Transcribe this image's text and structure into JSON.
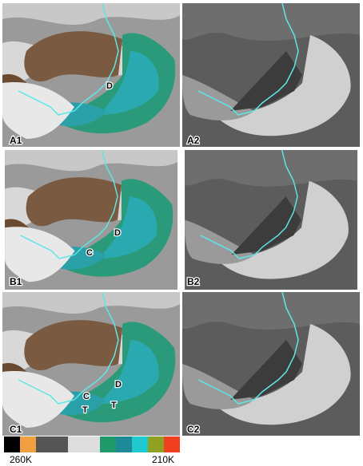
{
  "panels": [
    {
      "label": "A1",
      "annotations": [
        "D"
      ]
    },
    {
      "label": "A2",
      "annotations": []
    },
    {
      "label": "B1",
      "annotations": [
        "D",
        "C"
      ]
    },
    {
      "label": "B2",
      "annotations": []
    },
    {
      "label": "C1",
      "annotations": [
        "D",
        "C",
        "T",
        "T"
      ]
    },
    {
      "label": "C2",
      "annotations": []
    }
  ],
  "colorbar": {
    "left_label": "260K",
    "right_label": "210K"
  }
}
